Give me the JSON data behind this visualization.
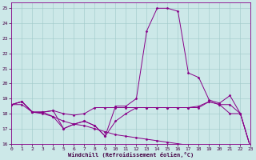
{
  "xlabel": "Windchill (Refroidissement éolien,°C)",
  "xlim": [
    0,
    23
  ],
  "ylim": [
    16,
    25.4
  ],
  "xticks": [
    0,
    1,
    2,
    3,
    4,
    5,
    6,
    7,
    8,
    9,
    10,
    11,
    12,
    13,
    14,
    15,
    16,
    17,
    18,
    19,
    20,
    21,
    22,
    23
  ],
  "yticks": [
    16,
    17,
    18,
    19,
    20,
    21,
    22,
    23,
    24,
    25
  ],
  "bg_color": "#cce8e8",
  "line_color": "#880088",
  "lines": [
    [
      18.6,
      18.8,
      18.1,
      18.1,
      18.2,
      17.0,
      17.3,
      17.5,
      17.2,
      16.5,
      18.5,
      18.5,
      19.0,
      23.5,
      25.0,
      25.0,
      24.8,
      20.7,
      20.4,
      18.9,
      18.7,
      19.2,
      18.0,
      15.7
    ],
    [
      18.6,
      18.8,
      18.1,
      18.1,
      18.2,
      18.0,
      17.9,
      18.0,
      18.4,
      18.4,
      18.4,
      18.4,
      18.4,
      18.4,
      18.4,
      18.4,
      18.4,
      18.4,
      18.5,
      18.8,
      18.6,
      18.6,
      18.0,
      15.7
    ],
    [
      18.6,
      18.8,
      18.1,
      18.1,
      17.8,
      17.0,
      17.3,
      17.5,
      17.2,
      16.5,
      17.5,
      18.0,
      18.4,
      18.4,
      18.4,
      18.4,
      18.4,
      18.4,
      18.4,
      18.8,
      18.6,
      18.0,
      18.0,
      15.7
    ],
    [
      18.6,
      18.6,
      18.1,
      18.0,
      17.8,
      17.5,
      17.3,
      17.2,
      17.0,
      16.8,
      16.6,
      16.5,
      16.4,
      16.3,
      16.2,
      16.1,
      16.0,
      15.9,
      15.85,
      15.8,
      15.75,
      15.7,
      15.7,
      15.7
    ]
  ]
}
